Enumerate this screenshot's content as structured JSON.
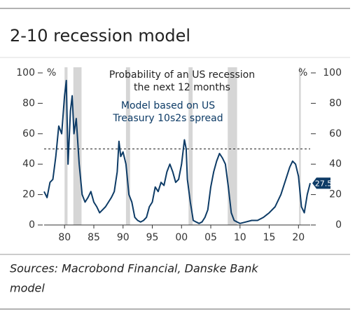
{
  "chart_data": {
    "type": "line",
    "title": "2-10 recession model",
    "annotation_lines": [
      "Probability of an US recession",
      "the next 12 months"
    ],
    "model_lines": [
      "Model based on US",
      "Treasury 10s2s spread"
    ],
    "y_unit": "%",
    "source_lines": [
      "Sources: Macrobond Financial, Danske Bank",
      "model"
    ],
    "color": "#0d3b66",
    "x": [
      1976.5,
      1977,
      1977.5,
      1978,
      1978.5,
      1979,
      1979.5,
      1980,
      1980.3,
      1980.6,
      1981,
      1981.3,
      1981.6,
      1982,
      1982.5,
      1983,
      1983.5,
      1984,
      1984.5,
      1985,
      1985.5,
      1986,
      1986.5,
      1987,
      1987.5,
      1988,
      1988.5,
      1989,
      1989.3,
      1989.6,
      1990,
      1990.5,
      1991,
      1991.5,
      1992,
      1992.5,
      1993,
      1993.5,
      1994,
      1994.5,
      1995,
      1995.5,
      1996,
      1996.5,
      1997,
      1997.5,
      1998,
      1998.5,
      1999,
      1999.5,
      2000,
      2000.5,
      2000.8,
      2001,
      2001.5,
      2002,
      2002.5,
      2003,
      2003.5,
      2004,
      2004.5,
      2005,
      2005.5,
      2006,
      2006.5,
      2007,
      2007.5,
      2008,
      2008.5,
      2009,
      2009.5,
      2010,
      2011,
      2012,
      2013,
      2014,
      2015,
      2016,
      2017,
      2018,
      2018.5,
      2019,
      2019.5,
      2020,
      2020.5,
      2021,
      2021.5,
      2022
    ],
    "values": [
      22,
      18,
      28,
      30,
      45,
      65,
      60,
      85,
      95,
      40,
      75,
      85,
      60,
      70,
      40,
      20,
      15,
      18,
      22,
      15,
      12,
      8,
      10,
      12,
      15,
      18,
      22,
      35,
      55,
      45,
      48,
      40,
      20,
      15,
      5,
      3,
      2,
      3,
      5,
      12,
      15,
      25,
      22,
      28,
      26,
      35,
      40,
      35,
      28,
      30,
      40,
      56,
      50,
      30,
      15,
      3,
      2,
      1,
      2,
      5,
      10,
      25,
      35,
      42,
      47,
      44,
      40,
      25,
      8,
      3,
      2,
      1,
      2,
      3,
      3,
      5,
      8,
      12,
      20,
      32,
      38,
      42,
      40,
      32,
      12,
      8,
      20,
      27.5
    ],
    "recessions": [
      [
        1980,
        1980.5
      ],
      [
        1981.5,
        1982.9
      ],
      [
        1990.5,
        1991.2
      ],
      [
        2001.2,
        2001.9
      ],
      [
        2007.9,
        2009.5
      ],
      [
        2020.1,
        2020.4
      ]
    ],
    "threshold": 50,
    "xlim": [
      1976.5,
      2022
    ],
    "ylim": [
      0,
      100
    ],
    "xticks": [
      {
        "value": 1980,
        "label": "80"
      },
      {
        "value": 1985,
        "label": "85"
      },
      {
        "value": 1990,
        "label": "90"
      },
      {
        "value": 1995,
        "label": "95"
      },
      {
        "value": 2000,
        "label": "00"
      },
      {
        "value": 2005,
        "label": "05"
      },
      {
        "value": 2010,
        "label": "10"
      },
      {
        "value": 2015,
        "label": "15"
      },
      {
        "value": 2020,
        "label": "20"
      }
    ],
    "yticks": [
      0,
      20,
      40,
      60,
      80,
      100
    ]
  }
}
